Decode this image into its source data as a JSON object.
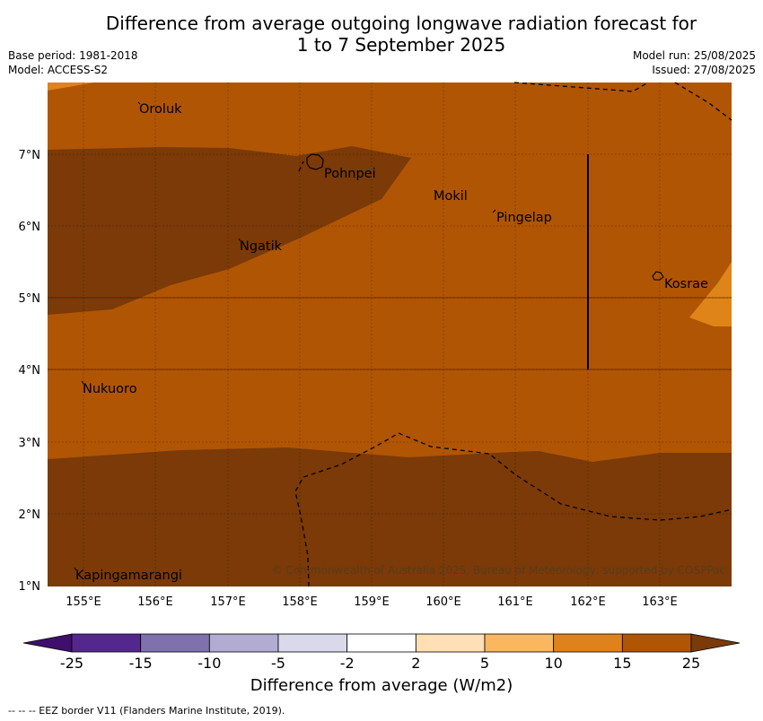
{
  "title": {
    "line1": "Difference from average outgoing longwave radiation forecast for",
    "line2": "1 to 7 September 2025"
  },
  "meta": {
    "base_period": "Base period: 1981-2018",
    "model": "Model: ACCESS-S2",
    "model_run": "Model run: 25/08/2025",
    "issued": "Issued: 27/08/2025"
  },
  "map": {
    "lon_ticks": [
      "155°E",
      "156°E",
      "157°E",
      "158°E",
      "159°E",
      "160°E",
      "161°E",
      "162°E",
      "163°E"
    ],
    "lat_ticks": [
      "7°N",
      "6°N",
      "5°N",
      "4°N",
      "3°N",
      "2°N",
      "1°N"
    ],
    "places": [
      "Oroluk",
      "Pohnpei",
      "Mokil",
      "Pingelap",
      "Ngatik",
      "Kosrae",
      "Nukuoro",
      "Kapingamarangi"
    ],
    "copyright": "© Commonwealth of Australia 2025, Bureau of Meteorology, supported by COSPPac",
    "colors": {
      "c15_25": "#b05504",
      "c25plus": "#7b3a07",
      "c10_15": "#df8419"
    }
  },
  "colorbar": {
    "ticks": [
      "-25",
      "-15",
      "-10",
      "-5",
      "-2",
      "2",
      "5",
      "10",
      "15",
      "25"
    ],
    "colors": [
      "#3f0f6b",
      "#54278f",
      "#7e71ae",
      "#b2abd2",
      "#dad9eb",
      "#ffffff",
      "#fedfb6",
      "#fbb760",
      "#e0821b",
      "#b05504",
      "#7b3a07"
    ],
    "label": "Difference from average (W/m2)"
  },
  "footnote": "--  --  -- EEZ border V11 (Flanders Marine Institute, 2019)."
}
